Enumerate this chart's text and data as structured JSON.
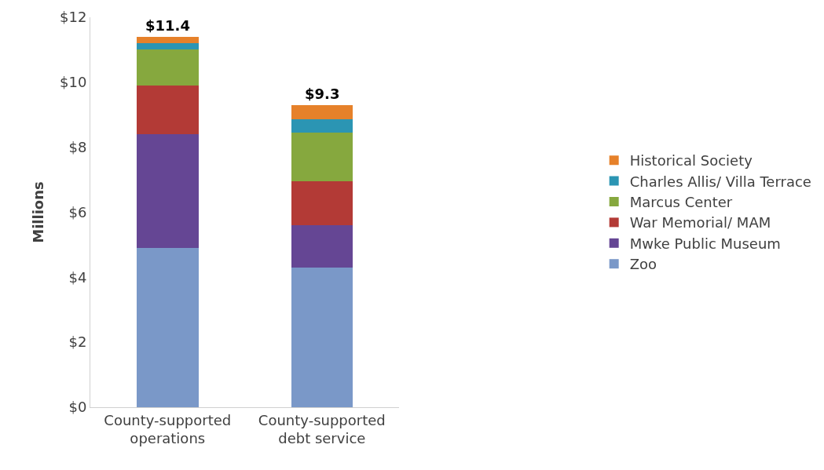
{
  "chart_data": {
    "type": "bar",
    "stacked": true,
    "ylabel": "Millions",
    "categories": [
      "County-supported operations",
      "County-supported debt service"
    ],
    "series": [
      {
        "name": "Zoo",
        "color": "#7a98c8",
        "values": [
          4.9,
          4.3
        ]
      },
      {
        "name": "Mwke Public Museum",
        "color": "#654694",
        "values": [
          3.5,
          1.3
        ]
      },
      {
        "name": "War Memorial/ MAM",
        "color": "#b33a36",
        "values": [
          1.5,
          1.35
        ]
      },
      {
        "name": "Marcus Center",
        "color": "#86a83e",
        "values": [
          1.1,
          1.5
        ]
      },
      {
        "name": "Charles Allis/ Villa Terrace",
        "color": "#2b95b3",
        "values": [
          0.2,
          0.4
        ]
      },
      {
        "name": "Historical Society",
        "color": "#e6812a",
        "values": [
          0.2,
          0.45
        ]
      }
    ],
    "totals": [
      "$11.4",
      "$9.3"
    ],
    "ylim": [
      0,
      12
    ],
    "yticks": [
      {
        "value": 0,
        "label": "$0"
      },
      {
        "value": 2,
        "label": "$2"
      },
      {
        "value": 4,
        "label": "$4"
      },
      {
        "value": 6,
        "label": "$6"
      },
      {
        "value": 8,
        "label": "$8"
      },
      {
        "value": 10,
        "label": "$10"
      },
      {
        "value": 12,
        "label": "$12"
      }
    ],
    "grid": false,
    "legend": "right"
  }
}
